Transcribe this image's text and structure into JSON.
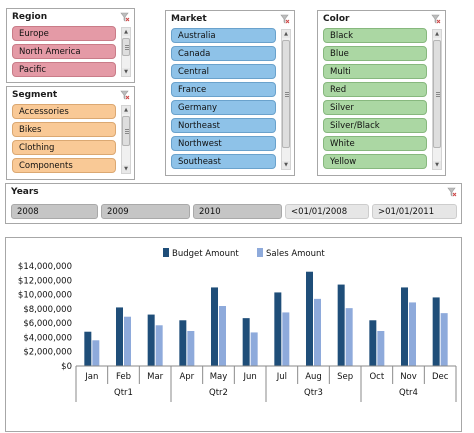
{
  "colors": {
    "budget": "#1f4e79",
    "sales": "#8eaadb"
  },
  "icons": {
    "clear_filter": "funnel-clear-icon"
  },
  "region": {
    "title": "Region",
    "items": [
      "Europe",
      "North America",
      "Pacific"
    ]
  },
  "segment": {
    "title": "Segment",
    "items": [
      "Accessories",
      "Bikes",
      "Clothing",
      "Components"
    ]
  },
  "market": {
    "title": "Market",
    "items": [
      "Australia",
      "Canada",
      "Central",
      "France",
      "Germany",
      "Northeast",
      "Northwest",
      "Southeast"
    ]
  },
  "color": {
    "title": "Color",
    "items": [
      "Black",
      "Blue",
      "Multi",
      "Red",
      "Silver",
      "Silver/Black",
      "White",
      "Yellow"
    ]
  },
  "years": {
    "title": "Years",
    "items": [
      "2008",
      "2009",
      "2010",
      "<01/01/2008",
      ">01/01/2011"
    ]
  },
  "chart_data": {
    "type": "bar",
    "title": "",
    "xlabel": "",
    "ylabel": "",
    "legend_position": "top",
    "grid": false,
    "ylim": [
      0,
      14000000
    ],
    "y_ticks": [
      "$0",
      "$2,000,000",
      "$4,000,000",
      "$6,000,000",
      "$8,000,000",
      "$10,000,000",
      "$12,000,000",
      "$14,000,000"
    ],
    "categories": [
      "Jan",
      "Feb",
      "Mar",
      "Apr",
      "May",
      "Jun",
      "Jul",
      "Aug",
      "Sep",
      "Oct",
      "Nov",
      "Dec"
    ],
    "groups": [
      "Qtr1",
      "Qtr2",
      "Qtr3",
      "Qtr4"
    ],
    "series": [
      {
        "name": "Budget Amount",
        "values": [
          4800000,
          8200000,
          7200000,
          6400000,
          11000000,
          6700000,
          10300000,
          13200000,
          11400000,
          6400000,
          11000000,
          9600000
        ]
      },
      {
        "name": "Sales Amount",
        "values": [
          3600000,
          6900000,
          5700000,
          4900000,
          8400000,
          4700000,
          7500000,
          9400000,
          8100000,
          4900000,
          8900000,
          7400000
        ]
      }
    ]
  }
}
